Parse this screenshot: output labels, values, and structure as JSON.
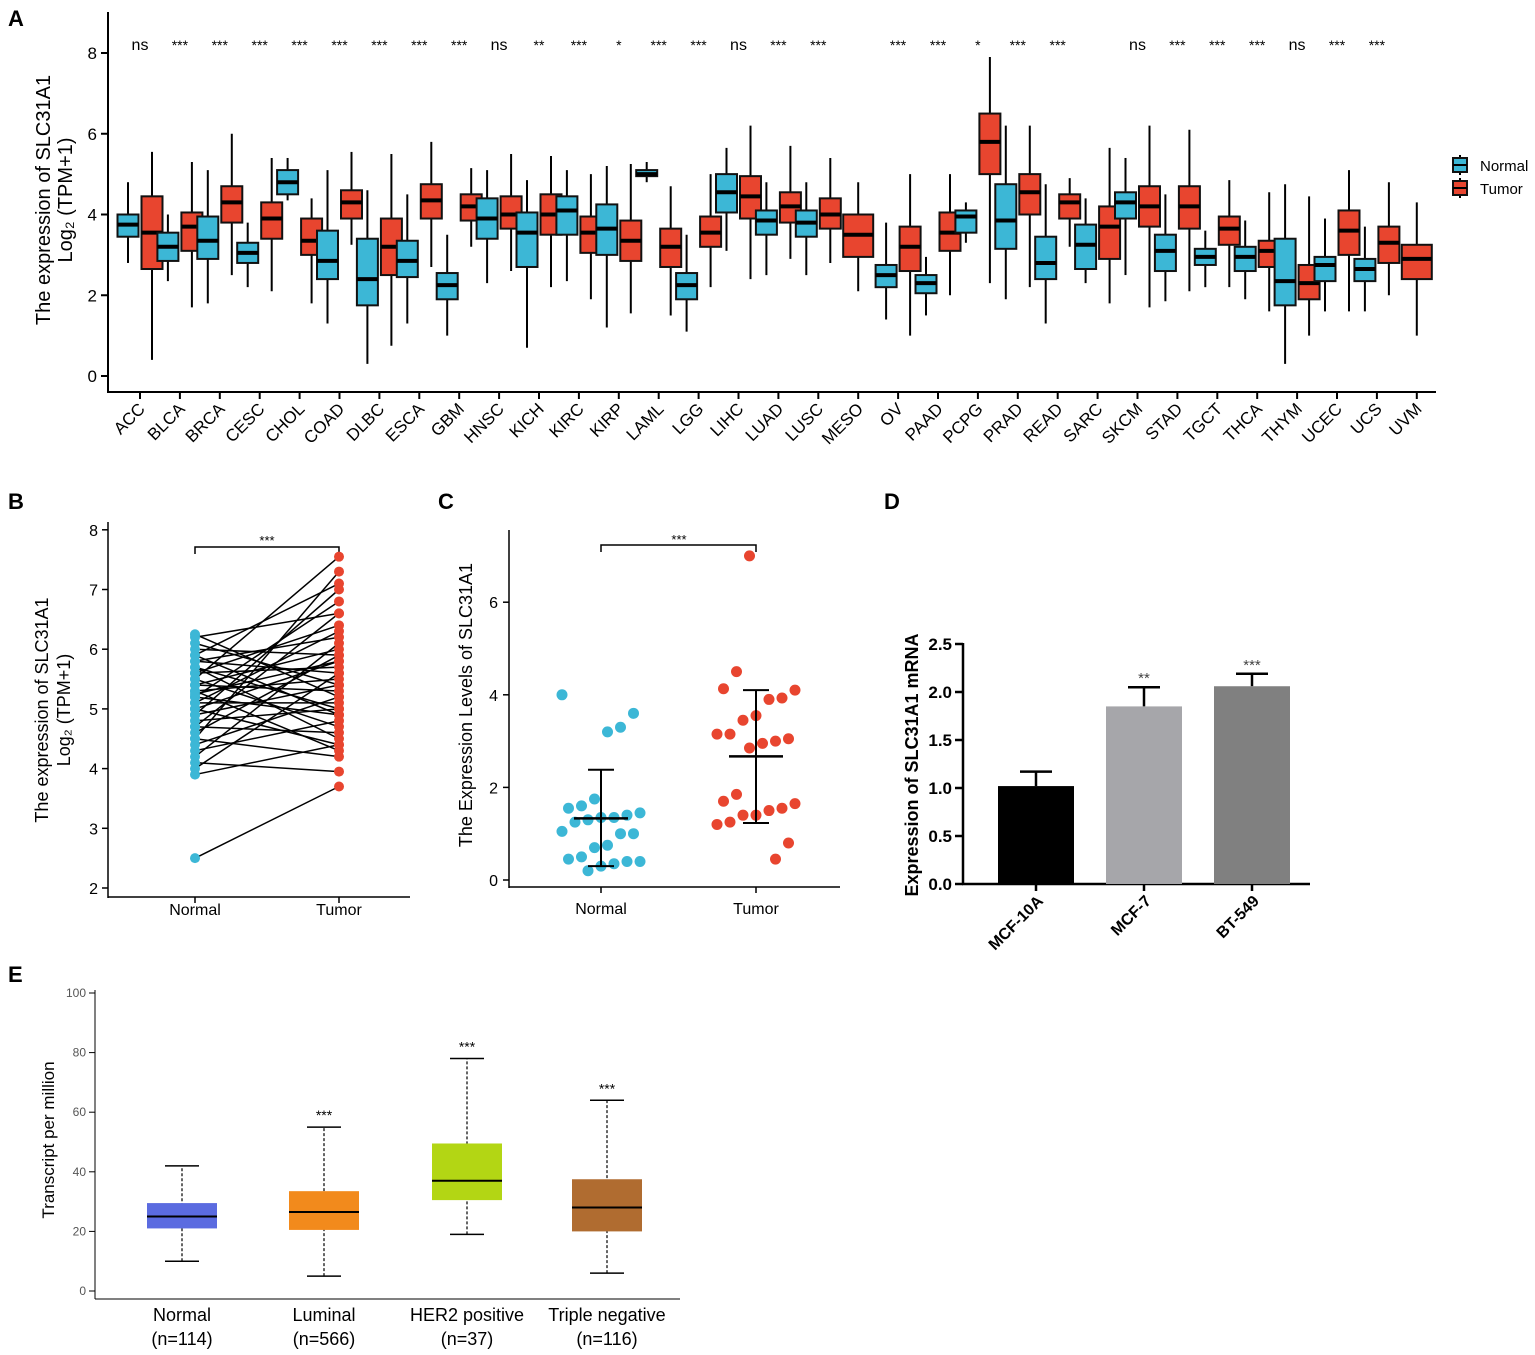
{
  "panel_labels": {
    "a": "A",
    "b": "B",
    "c": "C",
    "d": "D",
    "e": "E"
  },
  "chart_data": [
    {
      "type": "box",
      "ylabel": [
        "The expression of SLC31A1",
        "Log₂ (TPM+1)"
      ],
      "yticks": [
        0,
        2,
        4,
        6,
        8
      ],
      "ylim": [
        -0.4,
        8.4
      ],
      "legend": [
        "Normal",
        "Tumor"
      ],
      "colors": {
        "normal": "#3cb7d6",
        "tumor": "#e8452f"
      },
      "categories": [
        "ACC",
        "BLCA",
        "BRCA",
        "CESC",
        "CHOL",
        "COAD",
        "DLBC",
        "ESCA",
        "GBM",
        "HNSC",
        "KICH",
        "KIRC",
        "KIRP",
        "LAML",
        "LGG",
        "LIHC",
        "LUAD",
        "LUSC",
        "MESO",
        "OV",
        "PAAD",
        "PCPG",
        "PRAD",
        "READ",
        "SARC",
        "SKCM",
        "STAD",
        "TGCT",
        "THCA",
        "THYM",
        "UCEC",
        "UCS",
        "UVM"
      ],
      "significance": [
        "ns",
        "***",
        "***",
        "***",
        "***",
        "***",
        "***",
        "***",
        "***",
        "ns",
        "**",
        "***",
        "*",
        "***",
        "***",
        "ns",
        "***",
        "***",
        "",
        "***",
        "***",
        "*",
        "***",
        "***",
        "",
        "ns",
        "***",
        "***",
        "***",
        "ns",
        "***",
        "***",
        ""
      ],
      "box_stats_order": [
        "min",
        "q1",
        "median",
        "q3",
        "max"
      ],
      "normal": [
        [
          2.8,
          3.45,
          3.75,
          4.0,
          4.8
        ],
        [
          2.35,
          2.85,
          3.2,
          3.55,
          4.0
        ],
        [
          1.8,
          2.9,
          3.35,
          3.95,
          5.1
        ],
        [
          2.2,
          2.8,
          3.05,
          3.3,
          3.8
        ],
        [
          4.35,
          4.5,
          4.8,
          5.1,
          5.4
        ],
        [
          1.3,
          2.4,
          2.85,
          3.6,
          5.1
        ],
        [
          0.3,
          1.75,
          2.4,
          3.4,
          4.6
        ],
        [
          1.3,
          2.45,
          2.85,
          3.35,
          4.5
        ],
        [
          1.0,
          1.9,
          2.25,
          2.55,
          3.5
        ],
        [
          2.3,
          3.4,
          3.9,
          4.4,
          5.1
        ],
        [
          0.7,
          2.7,
          3.55,
          4.05,
          4.85
        ],
        [
          2.35,
          3.5,
          4.1,
          4.45,
          5.1
        ],
        [
          1.2,
          3.0,
          3.65,
          4.25,
          5.2
        ],
        [
          4.8,
          4.95,
          5.0,
          5.1,
          5.3
        ],
        [
          1.1,
          1.9,
          2.25,
          2.55,
          3.5
        ],
        [
          3.1,
          4.05,
          4.55,
          5.0,
          5.65
        ],
        [
          2.5,
          3.5,
          3.85,
          4.1,
          4.8
        ],
        [
          2.5,
          3.45,
          3.8,
          4.1,
          4.8
        ],
        null,
        [
          1.4,
          2.2,
          2.5,
          2.75,
          3.8
        ],
        [
          1.5,
          2.05,
          2.3,
          2.5,
          2.95
        ],
        [
          3.3,
          3.55,
          3.95,
          4.1,
          4.3
        ],
        [
          1.9,
          3.15,
          3.85,
          4.75,
          6.2
        ],
        [
          1.3,
          2.4,
          2.8,
          3.45,
          4.75
        ],
        [
          2.3,
          2.65,
          3.25,
          3.75,
          4.4
        ],
        [
          2.5,
          3.9,
          4.3,
          4.55,
          5.4
        ],
        [
          1.85,
          2.6,
          3.1,
          3.5,
          4.5
        ],
        [
          2.2,
          2.75,
          2.95,
          3.15,
          3.6
        ],
        [
          1.9,
          2.6,
          2.95,
          3.2,
          3.85
        ],
        [
          0.3,
          1.75,
          2.35,
          3.4,
          4.75
        ],
        [
          1.6,
          2.35,
          2.75,
          2.95,
          3.9
        ],
        [
          1.6,
          2.35,
          2.65,
          2.9,
          3.7
        ],
        null
      ],
      "tumor": [
        [
          0.4,
          2.65,
          3.55,
          4.45,
          5.55
        ],
        [
          1.7,
          3.1,
          3.7,
          4.05,
          5.3
        ],
        [
          2.5,
          3.8,
          4.3,
          4.7,
          6.0
        ],
        [
          2.1,
          3.4,
          3.9,
          4.3,
          5.4
        ],
        [
          1.8,
          3.0,
          3.35,
          3.9,
          4.4
        ],
        [
          3.25,
          3.9,
          4.3,
          4.6,
          5.55
        ],
        [
          0.75,
          2.5,
          3.2,
          3.9,
          5.5
        ],
        [
          2.7,
          3.9,
          4.35,
          4.75,
          5.8
        ],
        [
          3.2,
          3.85,
          4.2,
          4.5,
          5.15
        ],
        [
          2.6,
          3.65,
          4.0,
          4.45,
          5.5
        ],
        [
          2.2,
          3.5,
          4.0,
          4.5,
          5.45
        ],
        [
          1.9,
          3.05,
          3.55,
          3.95,
          5.0
        ],
        [
          1.55,
          2.85,
          3.35,
          3.85,
          5.25
        ],
        [
          1.5,
          2.7,
          3.2,
          3.65,
          4.7
        ],
        [
          2.2,
          3.2,
          3.55,
          3.95,
          5.0
        ],
        [
          2.4,
          3.9,
          4.45,
          4.95,
          6.2
        ],
        [
          2.9,
          3.8,
          4.2,
          4.55,
          5.7
        ],
        [
          2.8,
          3.65,
          4.0,
          4.4,
          5.4
        ],
        [
          2.1,
          2.95,
          3.5,
          4.0,
          4.8
        ],
        [
          1.0,
          2.6,
          3.2,
          3.7,
          5.0
        ],
        [
          2.0,
          3.1,
          3.55,
          4.05,
          5.0
        ],
        [
          2.3,
          5.0,
          5.8,
          6.5,
          7.9
        ],
        [
          2.2,
          4.0,
          4.55,
          5.0,
          6.2
        ],
        [
          3.2,
          3.9,
          4.3,
          4.5,
          4.9
        ],
        [
          1.8,
          2.9,
          3.7,
          4.2,
          5.65
        ],
        [
          1.7,
          3.7,
          4.2,
          4.7,
          6.2
        ],
        [
          2.1,
          3.65,
          4.2,
          4.7,
          6.1
        ],
        [
          2.2,
          3.25,
          3.65,
          3.95,
          4.85
        ],
        [
          1.6,
          2.7,
          3.1,
          3.35,
          4.55
        ],
        [
          1.0,
          1.9,
          2.3,
          2.75,
          4.45
        ],
        [
          1.6,
          3.0,
          3.6,
          4.1,
          5.1
        ],
        [
          2.0,
          2.8,
          3.3,
          3.7,
          4.8
        ],
        [
          1.0,
          2.4,
          2.9,
          3.25,
          4.3
        ]
      ]
    },
    {
      "type": "paired-scatter",
      "ylabel": [
        "The expression of SLC31A1",
        "Log₂ (TPM+1)"
      ],
      "categories": [
        "Normal",
        "Tumor"
      ],
      "yticks": [
        2,
        3,
        4,
        5,
        6,
        7,
        8
      ],
      "ylim": [
        2,
        8
      ],
      "significance": "***",
      "colors": {
        "normal": "#3cb7d6",
        "tumor": "#e8452f"
      },
      "pairs": [
        [
          2.5,
          3.7
        ],
        [
          3.9,
          4.4
        ],
        [
          4.0,
          5.6
        ],
        [
          4.1,
          3.95
        ],
        [
          4.2,
          6.1
        ],
        [
          4.3,
          4.8
        ],
        [
          4.4,
          5.2
        ],
        [
          4.5,
          7.3
        ],
        [
          4.5,
          4.2
        ],
        [
          4.6,
          5.9
        ],
        [
          4.7,
          4.6
        ],
        [
          4.7,
          6.6
        ],
        [
          4.8,
          5.0
        ],
        [
          4.9,
          5.4
        ],
        [
          4.9,
          7.0
        ],
        [
          5.0,
          4.4
        ],
        [
          5.0,
          5.8
        ],
        [
          5.1,
          6.3
        ],
        [
          5.1,
          5.1
        ],
        [
          5.2,
          4.9
        ],
        [
          5.2,
          6.8
        ],
        [
          5.3,
          5.5
        ],
        [
          5.3,
          4.3
        ],
        [
          5.4,
          6.0
        ],
        [
          5.4,
          5.3
        ],
        [
          5.5,
          7.55
        ],
        [
          5.5,
          4.7
        ],
        [
          5.6,
          5.7
        ],
        [
          5.6,
          6.4
        ],
        [
          5.7,
          5.0
        ],
        [
          5.7,
          4.5
        ],
        [
          5.8,
          6.2
        ],
        [
          5.8,
          5.6
        ],
        [
          5.9,
          7.1
        ],
        [
          5.9,
          4.9
        ],
        [
          6.0,
          5.9
        ],
        [
          6.1,
          5.4
        ],
        [
          6.2,
          6.6
        ],
        [
          6.25,
          5.2
        ],
        [
          5.25,
          5.8
        ]
      ]
    },
    {
      "type": "scatter",
      "ylabel": "The Expression Levels of SLC31A1",
      "categories": [
        "Normal",
        "Tumor"
      ],
      "yticks": [
        0,
        2,
        4,
        6
      ],
      "ylim": [
        0,
        7.3
      ],
      "significance": "***",
      "colors": {
        "normal": "#3cb7d6",
        "tumor": "#e8452f"
      },
      "normal_values": [
        4.0,
        3.6,
        3.3,
        3.2,
        1.75,
        1.6,
        1.55,
        1.45,
        1.4,
        1.35,
        1.35,
        1.3,
        1.25,
        1.05,
        1.0,
        1.0,
        0.75,
        0.7,
        0.5,
        0.45,
        0.4,
        0.4,
        0.35,
        0.3,
        0.2
      ],
      "tumor_values": [
        7.0,
        4.5,
        4.13,
        4.1,
        3.93,
        3.9,
        3.55,
        3.45,
        3.15,
        3.15,
        3.05,
        3.0,
        2.95,
        2.85,
        1.85,
        1.7,
        1.65,
        1.55,
        1.5,
        1.4,
        1.4,
        1.25,
        1.2,
        0.8,
        0.45
      ],
      "summary": {
        "normal": {
          "mean": 1.33,
          "low": 0.3,
          "high": 2.38
        },
        "tumor": {
          "mean": 2.67,
          "low": 1.23,
          "high": 4.1
        }
      }
    },
    {
      "type": "bar",
      "ylabel": "Expression of SLC31A1 mRNA",
      "categories": [
        "MCF-10A",
        "MCF-7",
        "BT-549"
      ],
      "values": [
        1.02,
        1.85,
        2.06
      ],
      "errors": [
        0.15,
        0.2,
        0.13
      ],
      "significance": [
        "",
        "**",
        "***"
      ],
      "colors": [
        "#000000",
        "#a6a6aa",
        "#808080"
      ],
      "yticks": [
        "0.0",
        "0.5",
        "1.0",
        "1.5",
        "2.0",
        "2.5"
      ],
      "ylim": [
        0,
        2.5
      ]
    },
    {
      "type": "box",
      "ylabel": "Transcript per million",
      "categories": [
        "Normal",
        "Luminal",
        "HER2 positive",
        "Triple negative"
      ],
      "counts": [
        "(n=114)",
        "(n=566)",
        "(n=37)",
        "(n=116)"
      ],
      "box_stats_order": [
        "min",
        "q1",
        "median",
        "q3",
        "max"
      ],
      "boxes": [
        [
          10,
          21,
          25,
          29.5,
          42
        ],
        [
          5,
          20.5,
          26.5,
          33.5,
          55
        ],
        [
          19,
          30.5,
          37,
          49.5,
          78
        ],
        [
          6,
          20,
          28,
          37.5,
          64
        ]
      ],
      "significance": [
        "",
        "***",
        "***",
        "***"
      ],
      "colors": [
        "#5b6be0",
        "#f28a1c",
        "#b3d614",
        "#b06c30"
      ],
      "yticks": [
        0,
        20,
        40,
        60,
        80,
        100
      ],
      "ylim": [
        0,
        100
      ]
    }
  ]
}
